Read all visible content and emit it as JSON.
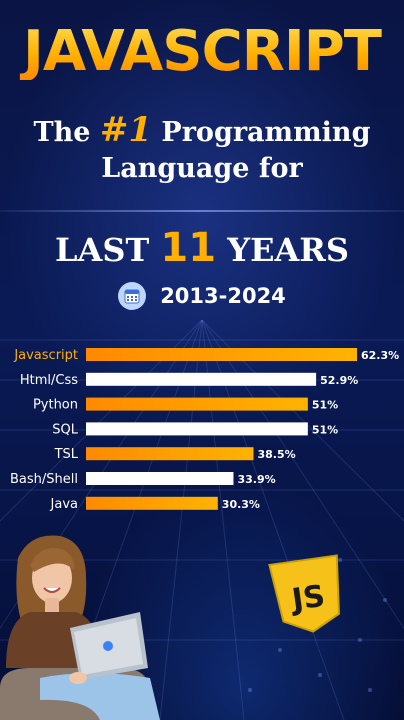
{
  "header": {
    "title": "JAVASCRIPT",
    "line1_prefix": "The",
    "line1_number": "#1",
    "line1_suffix": "Programming",
    "line2": "Language for",
    "last_prefix": "LAST",
    "last_number": "11",
    "last_suffix": "YEARS",
    "period": "2013-2024"
  },
  "icons": {
    "calendar": "calendar-icon",
    "logo": "js-logo-icon",
    "person": "person-with-laptop"
  },
  "colors": {
    "accent": "#ffb000",
    "bar_orange": "#ff9a00",
    "bar_white": "#ffffff",
    "background": "#0a1545"
  },
  "logo": {
    "text": "JS"
  },
  "chart_data": {
    "type": "bar",
    "orientation": "horizontal",
    "categories": [
      "Javascript",
      "Html/Css",
      "Python",
      "SQL",
      "TSL",
      "Bash/Shell",
      "Java"
    ],
    "values": [
      62.3,
      52.9,
      51,
      51,
      38.5,
      33.9,
      30.3
    ],
    "value_labels": [
      "62.3%",
      "52.9%",
      "51%",
      "51%",
      "38.5%",
      "33.9%",
      "30.3%"
    ],
    "bar_styles": [
      "orange",
      "white",
      "orange",
      "white",
      "orange",
      "white",
      "orange"
    ],
    "xlim": [
      0,
      66
    ],
    "grid": false,
    "legend": "none"
  }
}
